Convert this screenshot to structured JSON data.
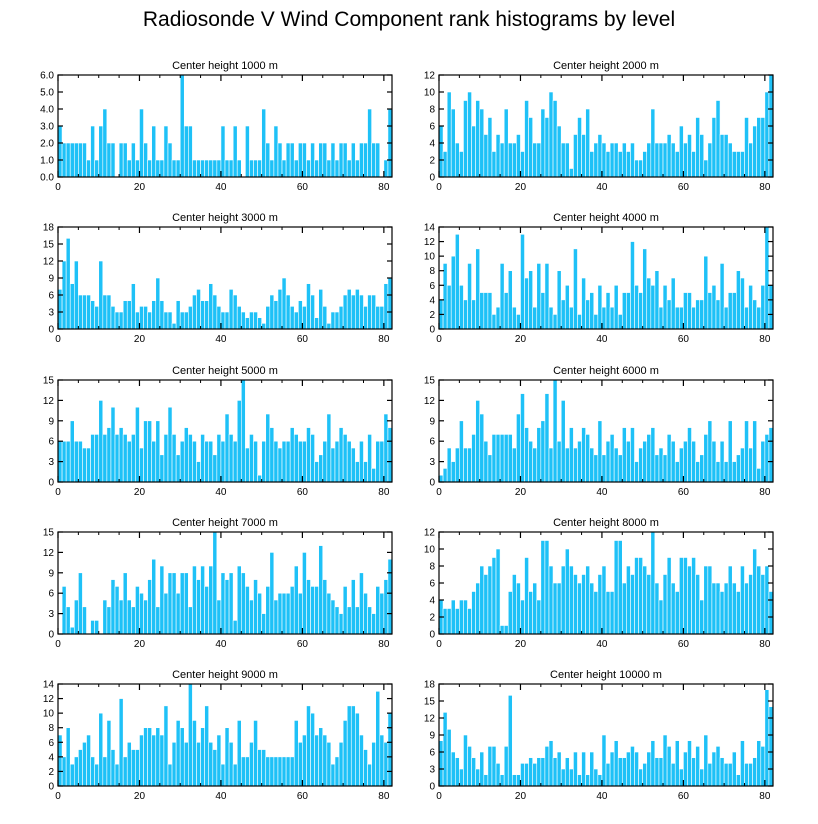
{
  "title": "Radiosonde V Wind Component rank histograms by level",
  "colors": {
    "bar": "#1EC1F7",
    "bar_edge": "#ffffff",
    "axis": "#000000"
  },
  "chart_data": [
    {
      "type": "bar",
      "title": "Center height 1000 m",
      "xlabel": "",
      "ylabel": "",
      "xlim": [
        0,
        82
      ],
      "ylim": [
        0,
        6
      ],
      "yticks": [
        0,
        1,
        2,
        3,
        4,
        5,
        6
      ],
      "ytick_labels": [
        "0.0",
        "1.0",
        "2.0",
        "3.0",
        "4.0",
        "5.0",
        "6.0"
      ],
      "xticks": [
        0,
        20,
        40,
        60,
        80
      ],
      "xtick_labels": [
        "0",
        "20",
        "40",
        "60",
        "80"
      ],
      "values": [
        3,
        2,
        2,
        2,
        2,
        2,
        2,
        1,
        3,
        1,
        3,
        4,
        2,
        2,
        0,
        2,
        2,
        1,
        2,
        1,
        4,
        2,
        1,
        3,
        1,
        1,
        3,
        2,
        1,
        1,
        6,
        3,
        3,
        1,
        1,
        1,
        1,
        1,
        1,
        1,
        3,
        1,
        1,
        3,
        1,
        0,
        3,
        1,
        1,
        1,
        4,
        2,
        1,
        3,
        2,
        1,
        2,
        2,
        1,
        2,
        2,
        1,
        2,
        1,
        2,
        2,
        1,
        2,
        1,
        2,
        2,
        1,
        2,
        1,
        2,
        2,
        4,
        2,
        2,
        0,
        1,
        4
      ]
    },
    {
      "type": "bar",
      "title": "Center height 2000 m",
      "xlabel": "",
      "ylabel": "",
      "xlim": [
        0,
        82
      ],
      "ylim": [
        0,
        12
      ],
      "yticks": [
        0,
        2,
        4,
        6,
        8,
        10,
        12
      ],
      "ytick_labels": [
        "0",
        "2",
        "4",
        "6",
        "8",
        "10",
        "12"
      ],
      "xticks": [
        0,
        20,
        40,
        60,
        80
      ],
      "xtick_labels": [
        "0",
        "20",
        "40",
        "60",
        "80"
      ],
      "values": [
        6,
        3,
        10,
        8,
        4,
        3,
        9,
        10,
        6,
        9,
        8,
        5,
        7,
        3,
        5,
        4,
        8,
        4,
        4,
        5,
        3,
        9,
        7,
        4,
        4,
        8,
        7,
        10,
        9,
        6,
        4,
        4,
        1,
        5,
        7,
        5,
        8,
        3,
        4,
        5,
        4,
        3,
        4,
        4,
        3,
        4,
        3,
        4,
        2,
        2,
        3,
        4,
        8,
        4,
        4,
        4,
        5,
        4,
        3,
        6,
        4,
        5,
        3,
        7,
        5,
        2,
        4,
        7,
        9,
        5,
        5,
        4,
        3,
        3,
        3,
        7,
        4,
        6,
        7,
        7,
        10,
        12
      ]
    },
    {
      "type": "bar",
      "title": "Center height 3000 m",
      "xlabel": "",
      "ylabel": "",
      "xlim": [
        0,
        82
      ],
      "ylim": [
        0,
        18
      ],
      "yticks": [
        0,
        3,
        6,
        9,
        12,
        15,
        18
      ],
      "ytick_labels": [
        "0",
        "3",
        "6",
        "9",
        "12",
        "15",
        "18"
      ],
      "xticks": [
        0,
        20,
        40,
        60,
        80
      ],
      "xtick_labels": [
        "0",
        "20",
        "40",
        "60",
        "80"
      ],
      "values": [
        7,
        12,
        16,
        8,
        12,
        6,
        6,
        6,
        5,
        4,
        12,
        6,
        6,
        4,
        3,
        3,
        5,
        5,
        8,
        3,
        4,
        4,
        3,
        5,
        9,
        5,
        3,
        3,
        1,
        5,
        3,
        3,
        4,
        6,
        7,
        5,
        5,
        8,
        6,
        4,
        3,
        3,
        7,
        6,
        4,
        3,
        2,
        3,
        3,
        2,
        1,
        4,
        6,
        5,
        7,
        9,
        6,
        4,
        3,
        5,
        4,
        8,
        6,
        2,
        7,
        4,
        1,
        3,
        3,
        4,
        6,
        7,
        6,
        7,
        6,
        4,
        6,
        6,
        4,
        4,
        8,
        9
      ]
    },
    {
      "type": "bar",
      "title": "Center height 4000 m",
      "xlabel": "",
      "ylabel": "",
      "xlim": [
        0,
        82
      ],
      "ylim": [
        0,
        14
      ],
      "yticks": [
        0,
        2,
        4,
        6,
        8,
        10,
        12,
        14
      ],
      "ytick_labels": [
        "0",
        "2",
        "4",
        "6",
        "8",
        "10",
        "12",
        "14"
      ],
      "xticks": [
        0,
        20,
        40,
        60,
        80
      ],
      "xtick_labels": [
        "0",
        "20",
        "40",
        "60",
        "80"
      ],
      "values": [
        4,
        9,
        6,
        10,
        13,
        6,
        4,
        9,
        4,
        11,
        5,
        5,
        5,
        2,
        3,
        9,
        5,
        8,
        3,
        2,
        13,
        7,
        8,
        3,
        9,
        5,
        9,
        3,
        2,
        8,
        4,
        6,
        3,
        11,
        2,
        7,
        4,
        5,
        2,
        6,
        3,
        5,
        3,
        6,
        2,
        5,
        5,
        12,
        6,
        5,
        11,
        7,
        6,
        8,
        3,
        6,
        4,
        7,
        3,
        3,
        5,
        5,
        3,
        4,
        4,
        10,
        5,
        6,
        4,
        9,
        3,
        5,
        5,
        8,
        7,
        3,
        6,
        4,
        3,
        6,
        14,
        6
      ]
    },
    {
      "type": "bar",
      "title": "Center height 5000 m",
      "xlabel": "",
      "ylabel": "",
      "xlim": [
        0,
        82
      ],
      "ylim": [
        0,
        15
      ],
      "yticks": [
        0,
        3,
        6,
        9,
        12,
        15
      ],
      "ytick_labels": [
        "0",
        "3",
        "6",
        "9",
        "12",
        "15"
      ],
      "xticks": [
        0,
        20,
        40,
        60,
        80
      ],
      "xtick_labels": [
        "0",
        "20",
        "40",
        "60",
        "80"
      ],
      "values": [
        6,
        6,
        6,
        9,
        6,
        6,
        5,
        5,
        7,
        7,
        12,
        7,
        8,
        11,
        7,
        8,
        7,
        6,
        7,
        11,
        5,
        9,
        9,
        6,
        9,
        4,
        7,
        11,
        7,
        4,
        6,
        8,
        7,
        6,
        3,
        7,
        6,
        6,
        4,
        7,
        6,
        10,
        7,
        6,
        12,
        15,
        5,
        7,
        6,
        1,
        6,
        10,
        8,
        6,
        5,
        6,
        6,
        8,
        7,
        6,
        6,
        8,
        7,
        3,
        4,
        6,
        10,
        5,
        6,
        8,
        7,
        6,
        5,
        3,
        6,
        3,
        7,
        2,
        6,
        6,
        10,
        8
      ]
    },
    {
      "type": "bar",
      "title": "Center height 6000 m",
      "xlabel": "",
      "ylabel": "",
      "xlim": [
        0,
        82
      ],
      "ylim": [
        0,
        15
      ],
      "yticks": [
        0,
        3,
        6,
        9,
        12,
        15
      ],
      "ytick_labels": [
        "0",
        "3",
        "6",
        "9",
        "12",
        "15"
      ],
      "xticks": [
        0,
        20,
        40,
        60,
        80
      ],
      "xtick_labels": [
        "0",
        "20",
        "40",
        "60",
        "80"
      ],
      "values": [
        1,
        2,
        5,
        3,
        5,
        9,
        5,
        5,
        7,
        12,
        10,
        6,
        4,
        7,
        7,
        7,
        7,
        7,
        5,
        10,
        13,
        8,
        6,
        5,
        8,
        9,
        13,
        5,
        15,
        6,
        12,
        5,
        8,
        5,
        6,
        8,
        7,
        5,
        4,
        9,
        4,
        6,
        7,
        5,
        4,
        8,
        6,
        8,
        3,
        5,
        6,
        7,
        8,
        4,
        5,
        4,
        7,
        6,
        3,
        5,
        6,
        8,
        6,
        3,
        4,
        7,
        9,
        6,
        3,
        6,
        3,
        9,
        3,
        4,
        5,
        9,
        5,
        9,
        2,
        6,
        7,
        8
      ]
    },
    {
      "type": "bar",
      "title": "Center height 7000 m",
      "xlabel": "",
      "ylabel": "",
      "xlim": [
        0,
        82
      ],
      "ylim": [
        0,
        15
      ],
      "yticks": [
        0,
        3,
        6,
        9,
        12,
        15
      ],
      "ytick_labels": [
        "0",
        "3",
        "6",
        "9",
        "12",
        "15"
      ],
      "xticks": [
        0,
        20,
        40,
        60,
        80
      ],
      "xtick_labels": [
        "0",
        "20",
        "40",
        "60",
        "80"
      ],
      "values": [
        0,
        7,
        4,
        1,
        5,
        9,
        4,
        0,
        2,
        2,
        0,
        5,
        4,
        8,
        7,
        5,
        9,
        5,
        4,
        7,
        6,
        5,
        8,
        11,
        4,
        10,
        6,
        9,
        9,
        6,
        9,
        9,
        4,
        10,
        8,
        10,
        7,
        10,
        15,
        5,
        9,
        8,
        9,
        2,
        10,
        9,
        7,
        5,
        8,
        6,
        3,
        7,
        12,
        5,
        6,
        6,
        6,
        7,
        10,
        6,
        12,
        8,
        7,
        7,
        13,
        8,
        6,
        5,
        4,
        3,
        7,
        4,
        8,
        4,
        9,
        6,
        4,
        3,
        7,
        6,
        8,
        11
      ]
    },
    {
      "type": "bar",
      "title": "Center height 8000 m",
      "xlabel": "",
      "ylabel": "",
      "xlim": [
        0,
        82
      ],
      "ylim": [
        0,
        12
      ],
      "yticks": [
        0,
        2,
        4,
        6,
        8,
        10,
        12
      ],
      "ytick_labels": [
        "0",
        "2",
        "4",
        "6",
        "8",
        "10",
        "12"
      ],
      "xticks": [
        0,
        20,
        40,
        60,
        80
      ],
      "xtick_labels": [
        "0",
        "20",
        "40",
        "60",
        "80"
      ],
      "values": [
        4,
        3,
        3,
        4,
        3,
        4,
        4,
        3,
        5,
        6,
        8,
        7,
        8,
        9,
        10,
        1,
        1,
        5,
        7,
        6,
        4,
        9,
        5,
        6,
        4,
        11,
        11,
        8,
        6,
        6,
        8,
        10,
        8,
        7,
        6,
        7,
        8,
        6,
        5,
        7,
        8,
        5,
        5,
        11,
        11,
        6,
        8,
        7,
        9,
        9,
        8,
        7,
        12,
        6,
        4,
        7,
        9,
        6,
        5,
        9,
        9,
        8,
        9,
        7,
        4,
        8,
        8,
        6,
        6,
        5,
        6,
        8,
        6,
        5,
        8,
        6,
        7,
        10,
        8,
        7,
        8,
        5
      ]
    },
    {
      "type": "bar",
      "title": "Center height 9000 m",
      "xlabel": "",
      "ylabel": "",
      "xlim": [
        0,
        82
      ],
      "ylim": [
        0,
        14
      ],
      "yticks": [
        0,
        2,
        4,
        6,
        8,
        10,
        12,
        14
      ],
      "ytick_labels": [
        "0",
        "2",
        "4",
        "6",
        "8",
        "10",
        "12",
        "14"
      ],
      "xticks": [
        0,
        20,
        40,
        60,
        80
      ],
      "xtick_labels": [
        "0",
        "20",
        "40",
        "60",
        "80"
      ],
      "values": [
        7,
        4,
        8,
        3,
        4,
        5,
        6,
        7,
        4,
        3,
        10,
        4,
        9,
        5,
        3,
        12,
        4,
        6,
        5,
        5,
        7,
        8,
        8,
        7,
        8,
        7,
        11,
        3,
        6,
        9,
        8,
        6,
        14,
        9,
        6,
        8,
        11,
        6,
        5,
        7,
        3,
        8,
        6,
        3,
        9,
        4,
        4,
        6,
        9,
        5,
        5,
        4,
        4,
        4,
        4,
        4,
        4,
        4,
        9,
        6,
        7,
        11,
        10,
        7,
        8,
        7,
        6,
        3,
        4,
        6,
        9,
        11,
        11,
        10,
        7,
        5,
        3,
        6,
        13,
        7,
        6,
        10
      ]
    },
    {
      "type": "bar",
      "title": "Center height 10000 m",
      "xlabel": "",
      "ylabel": "",
      "xlim": [
        0,
        82
      ],
      "ylim": [
        0,
        18
      ],
      "yticks": [
        0,
        3,
        6,
        9,
        12,
        15,
        18
      ],
      "ytick_labels": [
        "0",
        "3",
        "6",
        "9",
        "12",
        "15",
        "18"
      ],
      "xticks": [
        0,
        20,
        40,
        60,
        80
      ],
      "xtick_labels": [
        "0",
        "20",
        "40",
        "60",
        "80"
      ],
      "values": [
        8,
        13,
        10,
        6,
        5,
        3,
        9,
        7,
        5,
        3,
        6,
        2,
        7,
        7,
        4,
        2,
        7,
        16,
        2,
        2,
        4,
        4,
        5,
        4,
        5,
        5,
        7,
        8,
        5,
        6,
        3,
        5,
        3,
        6,
        2,
        6,
        2,
        6,
        3,
        2,
        9,
        4,
        6,
        8,
        5,
        5,
        6,
        7,
        6,
        3,
        4,
        6,
        8,
        5,
        5,
        9,
        7,
        4,
        8,
        3,
        6,
        8,
        5,
        7,
        3,
        9,
        4,
        6,
        7,
        5,
        4,
        4,
        6,
        2,
        8,
        4,
        4,
        5,
        8,
        7,
        17,
        14
      ]
    }
  ]
}
